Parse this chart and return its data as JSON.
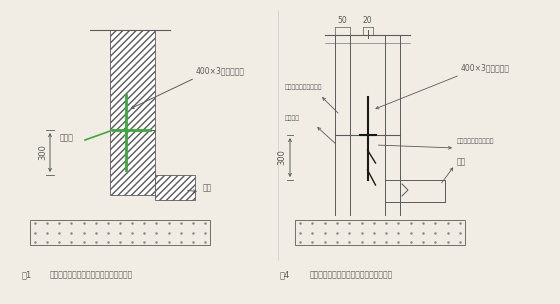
{
  "bg_color": "#f2ede4",
  "line_color": "#5a5a5a",
  "green_color": "#3aaa3a",
  "black_color": "#1a1a1a",
  "fig1": {
    "caption_num": "图1",
    "caption_text": "地下室外墙水平施工缝钢板止水带大样图",
    "label_300": "300",
    "label_400x3": "400×3钢板止水带",
    "label_jiaofeifeng": "浇筑缝",
    "label_diceng": "底板"
  },
  "fig4": {
    "caption_num": "图4",
    "caption_text": "地下室外墙水平施工缝钢板止水带大样图",
    "label_300": "300",
    "label_400x3": "400×3厚钢止水带",
    "label_dim50": "50",
    "label_dim20": "20",
    "label_gudingban": "固定止水钢板用止水器",
    "label_gudingmao": "固定止水钢板锚筋钢筋",
    "label_jichu": "基础垫层",
    "label_diceng": "底板"
  }
}
